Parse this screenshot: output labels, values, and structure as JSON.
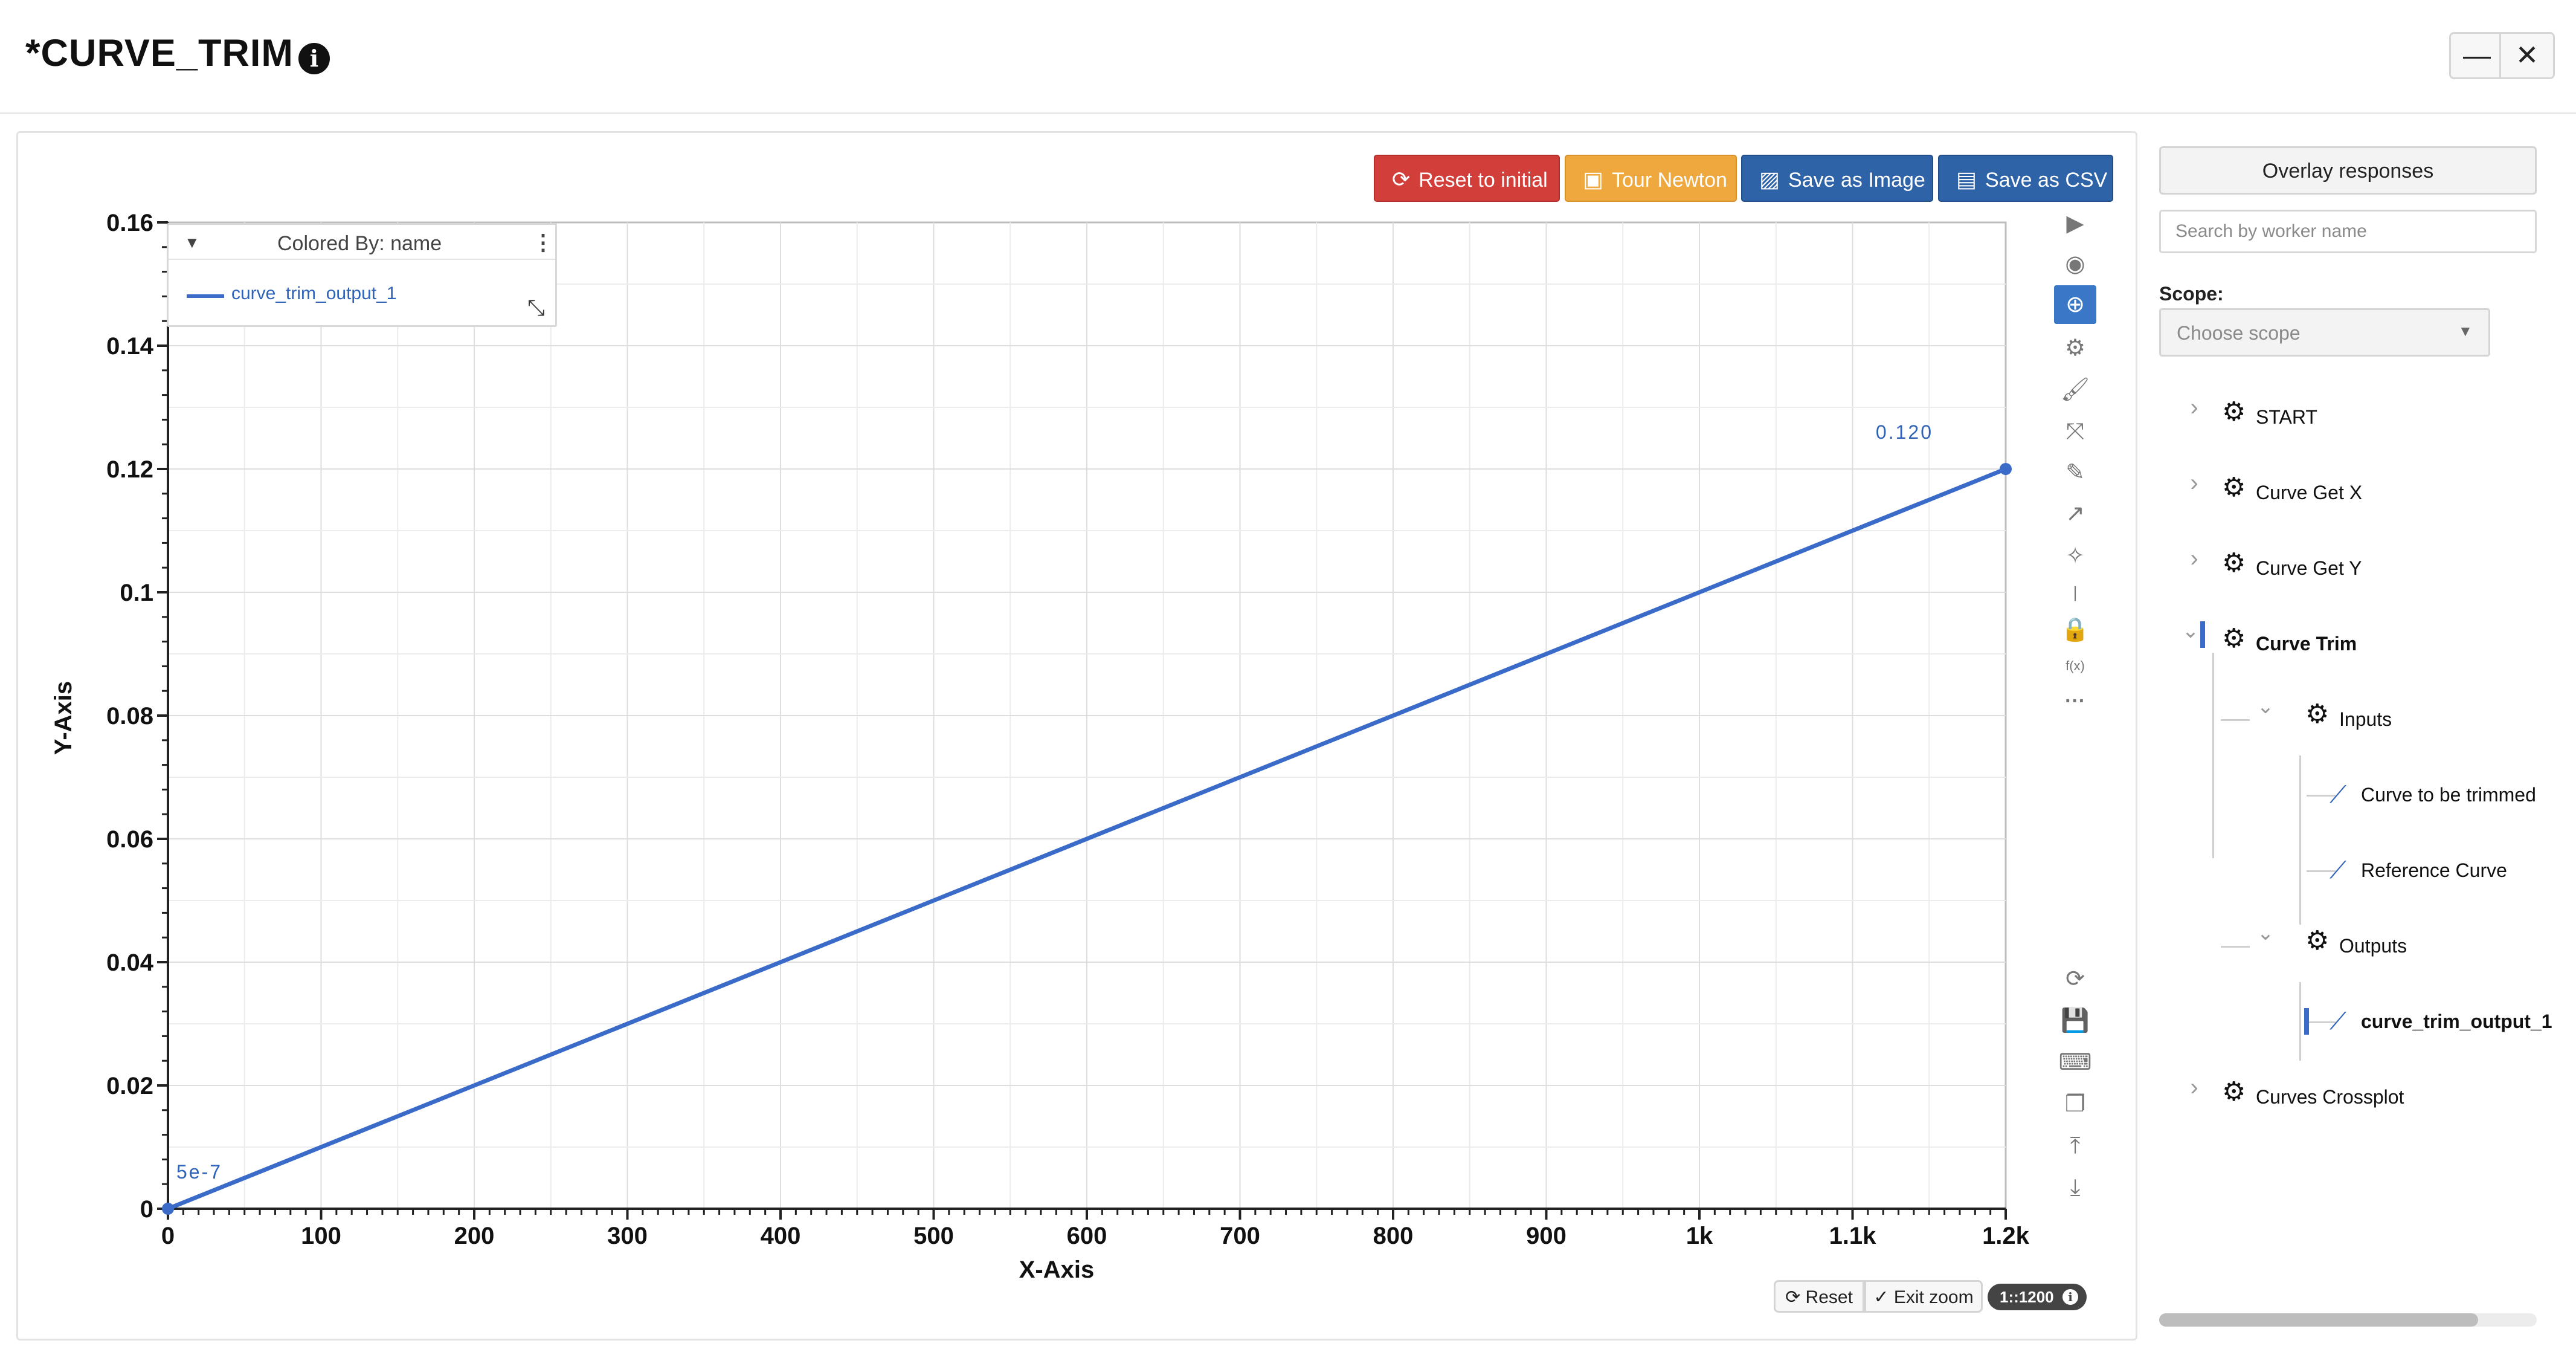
{
  "window": {
    "title": "*CURVE_TRIM",
    "info_icon": "info-icon",
    "minimize_label": "—",
    "close_label": "✕"
  },
  "toolbar": {
    "reset_initial_label": "Reset to initial",
    "tour_label": "Tour Newton",
    "save_image_label": "Save as Image",
    "save_csv_label": "Save as CSV",
    "colors": {
      "reset": "#d23f3a",
      "tour": "#eea83e",
      "save": "#2f63a8"
    }
  },
  "legend": {
    "title": "Colored By: name",
    "items": [
      {
        "label": "curve_trim_output_1",
        "color": "#3a6bc9"
      }
    ]
  },
  "side_tools": {
    "top": [
      "play-icon",
      "eye-icon",
      "zoom-in-icon",
      "settings-icon",
      "brush-icon",
      "fullscreen-icon",
      "pencil-icon",
      "arrow-icon",
      "magic-wand-icon",
      "separator-icon",
      "lock-icon",
      "function-icon",
      "more-icon"
    ],
    "function_label": "f(x)",
    "bottom": [
      "refresh-icon",
      "save-icon",
      "keyboard-icon",
      "copy-icon",
      "upload-icon",
      "download-icon"
    ]
  },
  "zoom_controls": {
    "reset_label": "Reset",
    "exit_label": "Exit zoom",
    "ratio_label": "1::1200"
  },
  "chart_data": {
    "type": "line",
    "title": "",
    "xlabel": "X-Axis",
    "ylabel": "Y-Axis",
    "xlim": [
      0,
      1200
    ],
    "ylim": [
      0,
      0.16
    ],
    "x_ticks": [
      0,
      100,
      200,
      300,
      400,
      500,
      600,
      700,
      800,
      900,
      1000,
      1100,
      1200
    ],
    "x_tick_labels": [
      "0",
      "100",
      "200",
      "300",
      "400",
      "500",
      "600",
      "700",
      "800",
      "900",
      "1k",
      "1.1k",
      "1.2k"
    ],
    "y_ticks": [
      0,
      0.02,
      0.04,
      0.06,
      0.08,
      0.1,
      0.12,
      0.14,
      0.16
    ],
    "y_tick_labels": [
      "0",
      "0.02",
      "0.04",
      "0.06",
      "0.08",
      "0.1",
      "0.12",
      "0.14",
      "0.16"
    ],
    "grid": true,
    "legend_position": "top-left",
    "series": [
      {
        "name": "curve_trim_output_1",
        "color": "#3a6bc9",
        "x": [
          0,
          1200
        ],
        "y": [
          5e-07,
          0.12
        ]
      }
    ],
    "annotations": [
      {
        "text": "5e-7",
        "x": 0,
        "y": 5e-07
      },
      {
        "text": "0.120",
        "x": 1200,
        "y": 0.12
      }
    ]
  },
  "sidebar": {
    "overlay_label": "Overlay responses",
    "search_placeholder": "Search by worker name",
    "scope_label": "Scope:",
    "scope_placeholder": "Choose scope",
    "tree": [
      {
        "label": "START"
      },
      {
        "label": "Curve Get X"
      },
      {
        "label": "Curve Get Y"
      },
      {
        "label": "Curve Trim"
      },
      {
        "label": "Inputs"
      },
      {
        "label": "Curve to be trimmed"
      },
      {
        "label": "Reference Curve"
      },
      {
        "label": "Outputs"
      },
      {
        "label": "curve_trim_output_1"
      },
      {
        "label": "Curves Crossplot"
      }
    ]
  }
}
